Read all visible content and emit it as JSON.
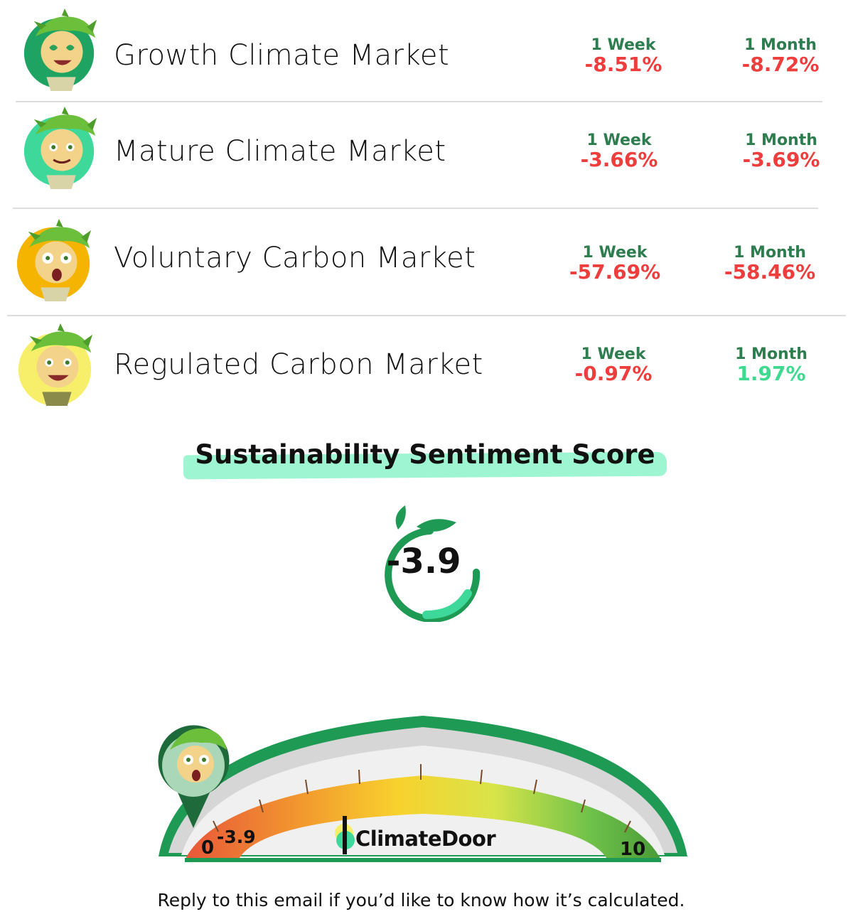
{
  "markets": [
    {
      "name": "Growth Climate Market",
      "week_label": "1 Week",
      "week_value": "-8.51%",
      "month_label": "1 Month",
      "month_value": "-8.72%",
      "avatar_icon": "elf-heart-eyes-avatar-icon",
      "avatar_color": "#1fa363"
    },
    {
      "name": "Mature Climate Market",
      "week_label": "1 Week",
      "week_value": "-3.66%",
      "month_label": "1 Month",
      "month_value": "-3.69%",
      "avatar_icon": "elf-smiling-avatar-icon",
      "avatar_color": "#3ed89a"
    },
    {
      "name": "Voluntary Carbon Market",
      "week_label": "1 Week",
      "week_value": "-57.69%",
      "month_label": "1 Month",
      "month_value": "-58.46%",
      "avatar_icon": "elf-shocked-avatar-icon",
      "avatar_color": "#f4b400"
    },
    {
      "name": "Regulated Carbon Market",
      "week_label": "1 Week",
      "week_value": "-0.97%",
      "month_label": "1 Month",
      "month_value": "1.97%",
      "avatar_icon": "elf-happy-avatar-icon",
      "avatar_color": "#f7ef6a"
    }
  ],
  "sentiment": {
    "title": "Sustainability Sentiment Score",
    "score": "-3.9",
    "gauge_min": "0",
    "gauge_max": "10",
    "needle_label": "-3.9",
    "brand": "ClimateDoor"
  },
  "footer": "Reply to this email if you’d like to know how it’s calculated.",
  "colors": {
    "negative": "#ee3d3d",
    "positive": "#3fd98f",
    "label": "#2e7d4f",
    "highlight": "#9ef5d1",
    "gauge_frame": "#1f9a55"
  }
}
